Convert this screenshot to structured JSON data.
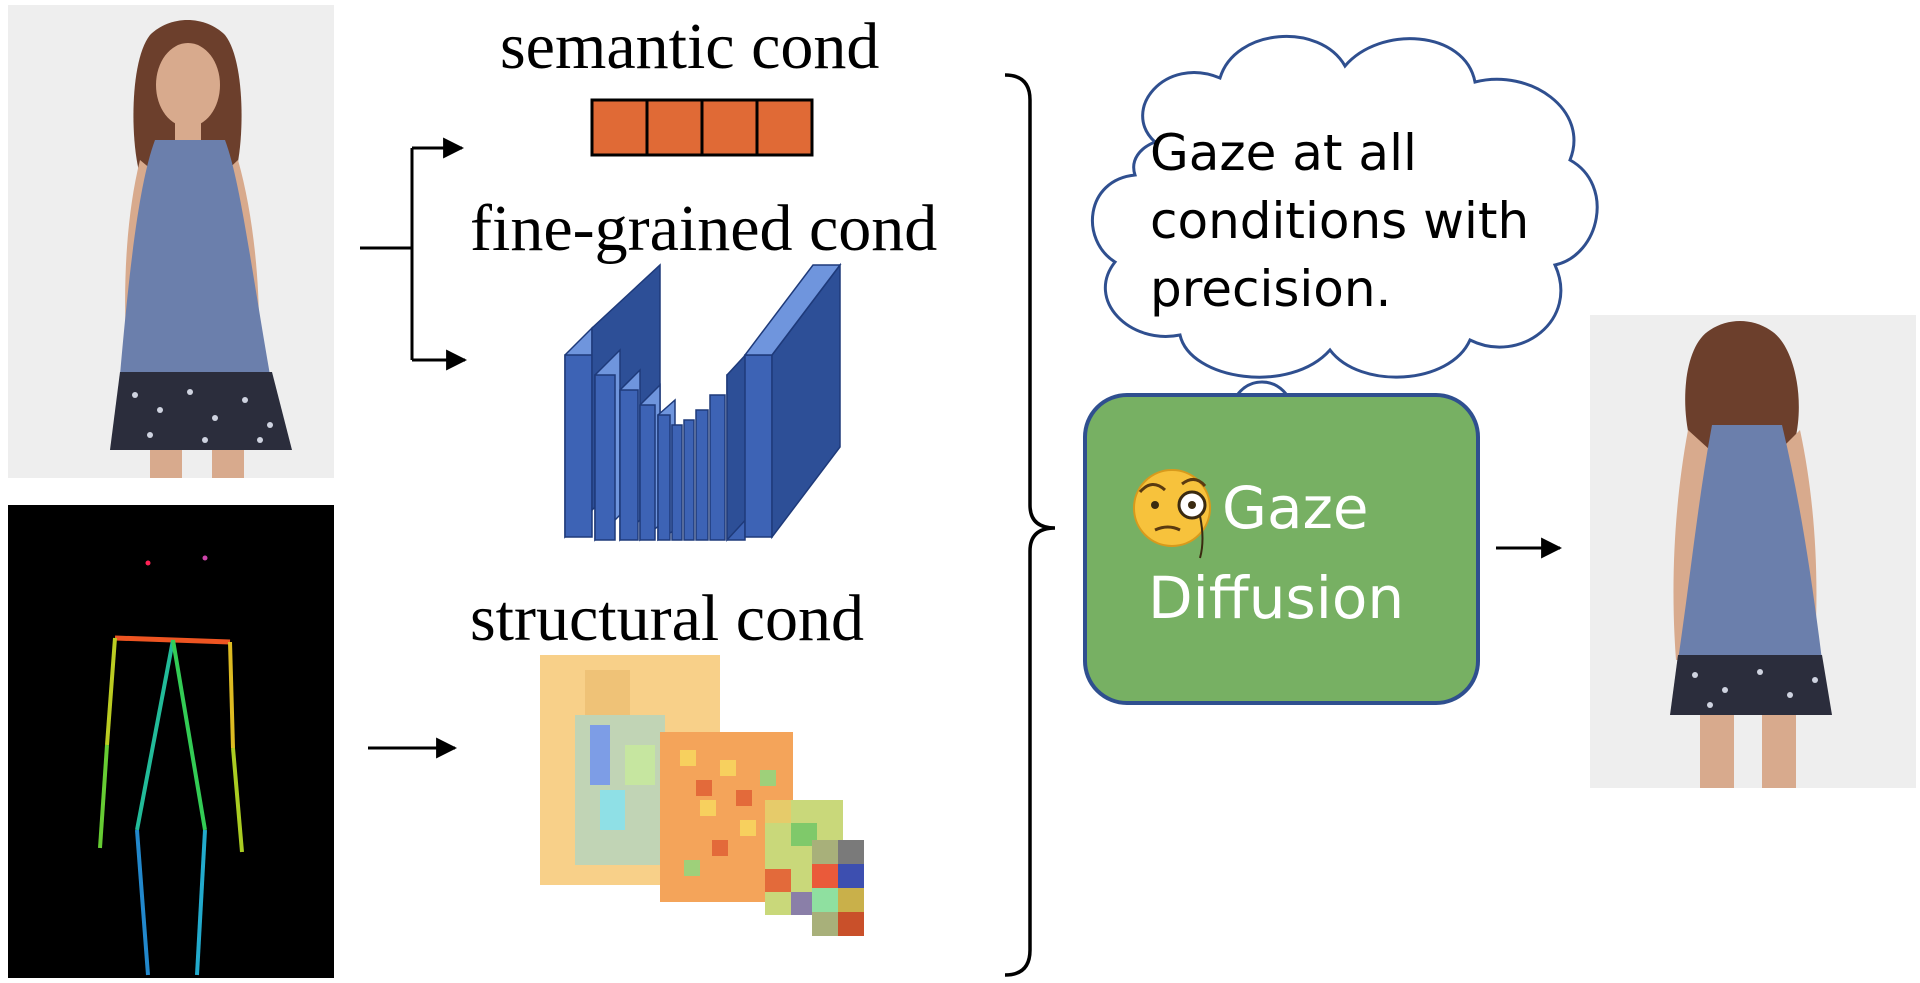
{
  "labels": {
    "semantic": "semantic cond",
    "fine_grained": "fine-grained cond",
    "structural": "structural cond"
  },
  "thought_bubble": {
    "line1": "Gaze at all",
    "line2": "conditions with",
    "line3": "precision."
  },
  "model_box": {
    "line1": "Gaze",
    "line2": "Diffusion",
    "emoji": "🧐",
    "fill_color": "#77b063",
    "border_color": "#2f4f8f"
  },
  "colors": {
    "semantic_token": "#e06a36",
    "cnn_block": "#3d63b5",
    "cnn_block_dark": "#2d4f97",
    "top_color": "#6f95dd",
    "pose_background": "#000000",
    "shirt": "#6b7fac",
    "skirt": "#2b2d3c",
    "skin": "#d8aa8d",
    "hair": "#6c3f2c",
    "photo_background": "#eeeeee"
  },
  "icons": {
    "source_image": "person-front-photo",
    "pose_image": "pose-skeleton",
    "semantic_tokens": "token-blocks",
    "fine_grained_encoder": "cnn-encoder-icon",
    "structural_maps": "feature-pyramid-icon",
    "output_image": "person-back-photo"
  }
}
